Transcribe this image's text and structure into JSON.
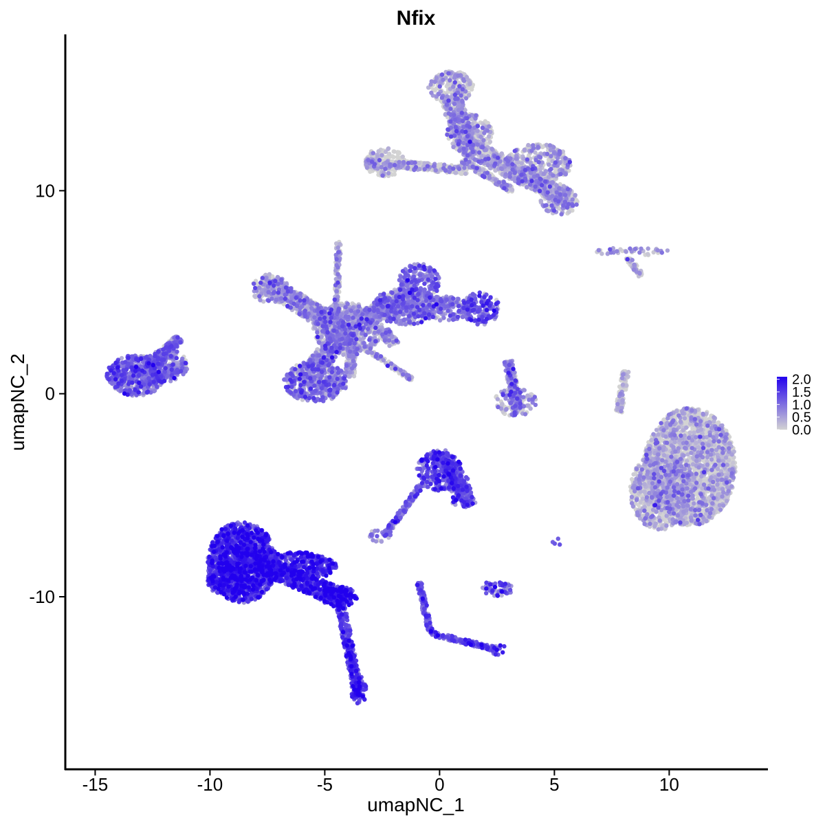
{
  "chart_data": {
    "type": "scatter",
    "title": "Nfix",
    "xlabel": "umapNC_1",
    "ylabel": "umapNC_2",
    "xlim": [
      -16.3,
      14.3
    ],
    "ylim": [
      -18.5,
      17.7
    ],
    "xticks": [
      -15,
      -10,
      -5,
      0,
      5,
      10
    ],
    "xtick_labels": [
      "-15",
      "-10",
      "-5",
      "0",
      "5",
      "10"
    ],
    "yticks": [
      -10,
      0,
      10
    ],
    "ytick_labels": [
      "-10",
      "0",
      "10"
    ],
    "grid": false,
    "legend_position": "right",
    "colorscale": {
      "low": "#d3d3d3",
      "high": "#2200ee",
      "min": 0,
      "max": 2.1
    },
    "legend_labels": [
      "2.0",
      "1.5",
      "1.0",
      "0.5",
      "0.0"
    ],
    "legend_values": [
      2.0,
      1.5,
      1.0,
      0.5,
      0.0
    ],
    "clusters": [
      {
        "cx": 10.9,
        "cy": -3.6,
        "rx": 2.0,
        "ry": 2.9,
        "expr": 0.15,
        "density": 1.0
      },
      {
        "cx": 9.6,
        "cy": -4.8,
        "rx": 1.3,
        "ry": 1.9,
        "expr": 0.15,
        "density": 0.7
      },
      {
        "cx": -8.6,
        "cy": -8.3,
        "rx": 1.5,
        "ry": 2.0,
        "expr": 1.45,
        "density": 1.0
      },
      {
        "cx": -9.2,
        "cy": -9.2,
        "rx": 0.9,
        "ry": 0.8,
        "expr": 1.45,
        "density": 0.8
      },
      {
        "cx": -6.2,
        "cy": -8.5,
        "rx": 1.7,
        "ry": 0.7,
        "expr": 1.5,
        "density": 0.7
      },
      {
        "cx": -4.4,
        "cy": -10.0,
        "rx": 0.8,
        "ry": 0.5,
        "expr": 1.75,
        "density": 0.7
      },
      {
        "cx": -3.5,
        "cy": -14.6,
        "rx": 0.35,
        "ry": 0.7,
        "expr": 1.3,
        "density": 0.5
      },
      {
        "cx": -13.2,
        "cy": 0.9,
        "rx": 1.3,
        "ry": 1.0,
        "expr": 0.95,
        "density": 0.8
      },
      {
        "cx": -11.9,
        "cy": 1.4,
        "rx": 0.9,
        "ry": 0.8,
        "expr": 0.8,
        "density": 0.5
      },
      {
        "cx": -7.4,
        "cy": 5.2,
        "rx": 0.8,
        "ry": 0.7,
        "expr": 0.45,
        "density": 0.5
      },
      {
        "cx": -5.4,
        "cy": 0.6,
        "rx": 1.4,
        "ry": 1.0,
        "expr": 0.75,
        "density": 0.8
      },
      {
        "cx": -4.0,
        "cy": 3.2,
        "rx": 1.5,
        "ry": 1.3,
        "expr": 0.45,
        "density": 0.7
      },
      {
        "cx": -1.5,
        "cy": 4.3,
        "rx": 1.4,
        "ry": 0.9,
        "expr": 0.7,
        "density": 0.7
      },
      {
        "cx": -0.9,
        "cy": 5.5,
        "rx": 0.9,
        "ry": 0.9,
        "expr": 0.85,
        "density": 0.6
      },
      {
        "cx": 1.8,
        "cy": 4.2,
        "rx": 0.8,
        "ry": 0.8,
        "expr": 1.05,
        "density": 0.6
      },
      {
        "cx": 0.2,
        "cy": 4.2,
        "rx": 1.2,
        "ry": 0.6,
        "expr": 0.8,
        "density": 0.5
      },
      {
        "cx": 0.0,
        "cy": -3.8,
        "rx": 1.0,
        "ry": 1.0,
        "expr": 1.2,
        "density": 0.6
      },
      {
        "cx": 0.9,
        "cy": -4.8,
        "rx": 0.5,
        "ry": 0.8,
        "expr": 1.1,
        "density": 0.4
      },
      {
        "cx": -2.6,
        "cy": -7.0,
        "rx": 0.5,
        "ry": 0.3,
        "expr": 0.9,
        "density": 0.3
      },
      {
        "cx": 2.5,
        "cy": -9.6,
        "rx": 0.7,
        "ry": 0.4,
        "expr": 1.2,
        "density": 0.4
      },
      {
        "cx": 2.6,
        "cy": -12.6,
        "rx": 0.35,
        "ry": 0.3,
        "expr": 1.3,
        "density": 0.3
      },
      {
        "cx": 3.3,
        "cy": -0.4,
        "rx": 0.9,
        "ry": 0.7,
        "expr": 0.5,
        "density": 0.4
      },
      {
        "cx": 0.5,
        "cy": 15.1,
        "rx": 1.0,
        "ry": 0.8,
        "expr": 0.35,
        "density": 0.6
      },
      {
        "cx": 1.3,
        "cy": 12.8,
        "rx": 1.0,
        "ry": 1.0,
        "expr": 0.3,
        "density": 0.5
      },
      {
        "cx": 4.3,
        "cy": 11.3,
        "rx": 1.4,
        "ry": 1.0,
        "expr": 0.3,
        "density": 0.6
      },
      {
        "cx": 5.2,
        "cy": 9.5,
        "rx": 0.8,
        "ry": 0.7,
        "expr": 0.35,
        "density": 0.5
      },
      {
        "cx": -2.4,
        "cy": 11.4,
        "rx": 0.9,
        "ry": 0.7,
        "expr": 0.1,
        "density": 0.5
      },
      {
        "cx": 8.4,
        "cy": 7.0,
        "rx": 1.6,
        "ry": 0.2,
        "expr": 0.3,
        "density": 0.3
      },
      {
        "cx": 5.1,
        "cy": -7.3,
        "rx": 0.2,
        "ry": 0.3,
        "expr": 0.9,
        "density": 0.15
      }
    ],
    "segments": [
      {
        "x1": -9.0,
        "y1": -7.8,
        "x2": -4.0,
        "y2": -10.2,
        "w": 0.45,
        "expr": 1.55
      },
      {
        "x1": -4.3,
        "y1": -10.5,
        "x2": -3.5,
        "y2": -15.0,
        "w": 0.2,
        "expr": 1.3
      },
      {
        "x1": -12.8,
        "y1": 1.2,
        "x2": -11.3,
        "y2": 2.7,
        "w": 0.25,
        "expr": 0.8
      },
      {
        "x1": -12.8,
        "y1": 0.5,
        "x2": -11.0,
        "y2": 1.4,
        "w": 0.2,
        "expr": 0.7
      },
      {
        "x1": -7.5,
        "y1": 5.4,
        "x2": -4.5,
        "y2": 3.3,
        "w": 0.45,
        "expr": 0.4
      },
      {
        "x1": -5.5,
        "y1": 1.2,
        "x2": -3.8,
        "y2": 3.5,
        "w": 0.45,
        "expr": 0.5
      },
      {
        "x1": -3.8,
        "y1": 3.5,
        "x2": -1.2,
        "y2": 4.6,
        "w": 0.45,
        "expr": 0.5
      },
      {
        "x1": -4.5,
        "y1": 3.6,
        "x2": -4.4,
        "y2": 7.5,
        "w": 0.1,
        "expr": 0.4
      },
      {
        "x1": -3.2,
        "y1": 2.2,
        "x2": -1.2,
        "y2": 0.7,
        "w": 0.1,
        "expr": 0.4
      },
      {
        "x1": -2.5,
        "y1": 3.2,
        "x2": -2.0,
        "y2": 2.4,
        "w": 0.25,
        "expr": 0.4
      },
      {
        "x1": -3.8,
        "y1": 3.0,
        "x2": -3.9,
        "y2": 0.8,
        "w": 0.2,
        "expr": 0.5
      },
      {
        "x1": 0.0,
        "y1": -2.9,
        "x2": 1.3,
        "y2": -5.5,
        "w": 0.3,
        "expr": 1.1
      },
      {
        "x1": -0.8,
        "y1": -4.5,
        "x2": -2.4,
        "y2": -7.0,
        "w": 0.12,
        "expr": 0.9
      },
      {
        "x1": -0.9,
        "y1": -9.3,
        "x2": -0.4,
        "y2": -11.8,
        "w": 0.12,
        "expr": 1.0
      },
      {
        "x1": -0.4,
        "y1": -11.8,
        "x2": 2.5,
        "y2": -12.6,
        "w": 0.12,
        "expr": 1.2
      },
      {
        "x1": 3.0,
        "y1": 1.6,
        "x2": 3.4,
        "y2": -1.0,
        "w": 0.2,
        "expr": 0.6
      },
      {
        "x1": 0.5,
        "y1": 14.5,
        "x2": 1.2,
        "y2": 12.0,
        "w": 0.45,
        "expr": 0.3
      },
      {
        "x1": 1.2,
        "y1": 12.2,
        "x2": 5.6,
        "y2": 9.6,
        "w": 0.45,
        "expr": 0.3
      },
      {
        "x1": -3.2,
        "y1": 11.4,
        "x2": 1.2,
        "y2": 11.0,
        "w": 0.2,
        "expr": 0.2
      },
      {
        "x1": 1.0,
        "y1": 11.5,
        "x2": 3.2,
        "y2": 10.0,
        "w": 0.15,
        "expr": 0.2
      },
      {
        "x1": 8.1,
        "y1": 1.1,
        "x2": 7.8,
        "y2": -0.9,
        "w": 0.15,
        "expr": 0.05
      },
      {
        "x1": 8.2,
        "y1": 6.7,
        "x2": 8.8,
        "y2": 5.8,
        "w": 0.12,
        "expr": 0.1
      }
    ]
  }
}
